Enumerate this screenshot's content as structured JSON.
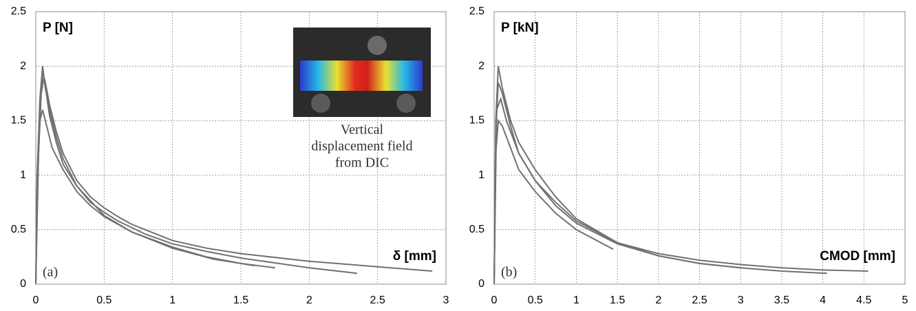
{
  "chart_data": [
    {
      "type": "line",
      "panel_label": "(a)",
      "ylabel": "P [N]",
      "xlabel": "δ [mm]",
      "annotation": [
        "Vertical",
        "displacement field",
        "from DIC"
      ],
      "xlim": [
        0,
        3
      ],
      "xticks": [
        0,
        0.5,
        1,
        1.5,
        2,
        2.5,
        3
      ],
      "ylim": [
        0,
        2.5
      ],
      "yticks": [
        0,
        0.5,
        1,
        1.5,
        2,
        2.5
      ],
      "grid": true,
      "series": [
        {
          "color": "#707070",
          "x": [
            0,
            0.01,
            0.03,
            0.05,
            0.07,
            0.1,
            0.15,
            0.2,
            0.3,
            0.4,
            0.5,
            0.6,
            0.7,
            0.8,
            1,
            1.25,
            1.5,
            2,
            2.5,
            2.9
          ],
          "values": [
            0,
            0.8,
            1.6,
            1.95,
            1.85,
            1.65,
            1.4,
            1.2,
            0.95,
            0.8,
            0.7,
            0.62,
            0.55,
            0.5,
            0.4,
            0.33,
            0.28,
            0.21,
            0.16,
            0.12
          ]
        },
        {
          "color": "#707070",
          "x": [
            0,
            0.01,
            0.03,
            0.05,
            0.07,
            0.1,
            0.15,
            0.2,
            0.3,
            0.4,
            0.5,
            0.6,
            0.7,
            0.8,
            1,
            1.25,
            1.5,
            2,
            2.35
          ],
          "values": [
            0,
            1.0,
            1.7,
            2.0,
            1.8,
            1.6,
            1.35,
            1.15,
            0.9,
            0.75,
            0.66,
            0.58,
            0.52,
            0.46,
            0.37,
            0.3,
            0.24,
            0.15,
            0.1
          ]
        },
        {
          "color": "#707070",
          "x": [
            0,
            0.01,
            0.03,
            0.05,
            0.08,
            0.12,
            0.2,
            0.3,
            0.4,
            0.5,
            0.7,
            1,
            1.25,
            1.5,
            1.75
          ],
          "values": [
            0,
            0.9,
            1.5,
            1.6,
            1.45,
            1.25,
            1.05,
            0.85,
            0.72,
            0.62,
            0.48,
            0.34,
            0.25,
            0.19,
            0.15
          ]
        },
        {
          "color": "#707070",
          "x": [
            0,
            0.02,
            0.04,
            0.06,
            0.1,
            0.15,
            0.2,
            0.3,
            0.5,
            0.7,
            1,
            1.3,
            1.6
          ],
          "values": [
            0,
            1.2,
            1.75,
            1.9,
            1.55,
            1.3,
            1.1,
            0.9,
            0.63,
            0.48,
            0.33,
            0.23,
            0.17
          ]
        }
      ]
    },
    {
      "type": "line",
      "panel_label": "(b)",
      "ylabel": "P [kN]",
      "xlabel": "CMOD [mm]",
      "xlim": [
        0,
        5
      ],
      "xticks": [
        0,
        0.5,
        1,
        1.5,
        2,
        2.5,
        3,
        3.5,
        4,
        4.5,
        5
      ],
      "ylim": [
        0,
        2.5
      ],
      "yticks": [
        0,
        0.5,
        1,
        1.5,
        2,
        2.5
      ],
      "grid": true,
      "series": [
        {
          "color": "#707070",
          "x": [
            0,
            0.02,
            0.05,
            0.1,
            0.2,
            0.3,
            0.5,
            0.75,
            1,
            1.5,
            2,
            2.5,
            3,
            3.5,
            4,
            4.55
          ],
          "values": [
            0,
            1.5,
            2.0,
            1.8,
            1.5,
            1.3,
            1.05,
            0.8,
            0.6,
            0.38,
            0.28,
            0.22,
            0.18,
            0.15,
            0.13,
            0.12
          ]
        },
        {
          "color": "#707070",
          "x": [
            0,
            0.02,
            0.05,
            0.1,
            0.2,
            0.3,
            0.5,
            0.75,
            1,
            1.5,
            2,
            2.5,
            3,
            3.5,
            4.05
          ],
          "values": [
            0,
            1.4,
            1.85,
            1.75,
            1.45,
            1.2,
            0.95,
            0.72,
            0.56,
            0.37,
            0.26,
            0.19,
            0.15,
            0.12,
            0.1
          ]
        },
        {
          "color": "#707070",
          "x": [
            0,
            0.02,
            0.05,
            0.1,
            0.2,
            0.3,
            0.5,
            0.75,
            1,
            1.25,
            1.45
          ],
          "values": [
            0,
            1.2,
            1.5,
            1.45,
            1.25,
            1.05,
            0.85,
            0.65,
            0.5,
            0.4,
            0.32
          ]
        },
        {
          "color": "#707070",
          "x": [
            0,
            0.03,
            0.08,
            0.15,
            0.3,
            0.5,
            0.75,
            1,
            1.5,
            2,
            2.5,
            3
          ],
          "values": [
            0,
            1.6,
            1.7,
            1.5,
            1.2,
            0.95,
            0.75,
            0.58,
            0.38,
            0.26,
            0.19,
            0.15
          ]
        }
      ]
    }
  ]
}
